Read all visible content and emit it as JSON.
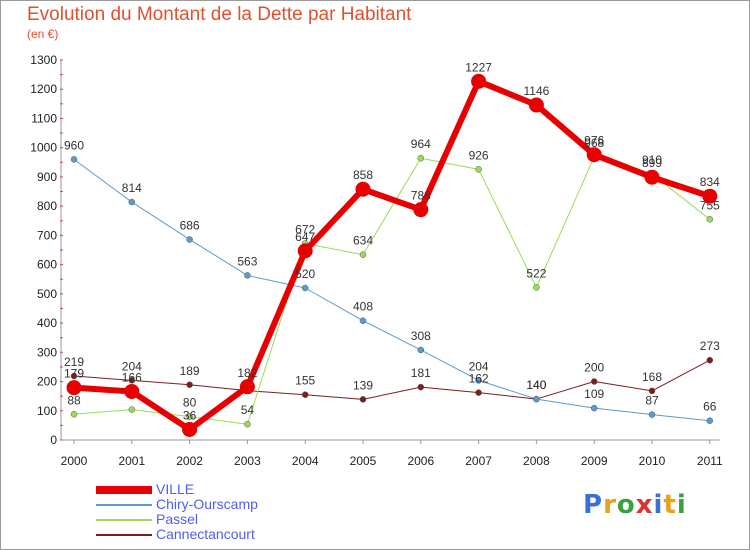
{
  "header": {
    "title": "Evolution du Montant de la Dette par Habitant",
    "unit": "(en €)"
  },
  "chart_data": {
    "type": "line",
    "title": "Evolution du Montant de la Dette par Habitant",
    "subtitle": "(en €)",
    "xlabel": "",
    "ylabel": "",
    "x": [
      2000,
      2001,
      2002,
      2003,
      2004,
      2005,
      2006,
      2007,
      2008,
      2009,
      2010,
      2011
    ],
    "x_tick_labels": [
      "2000",
      "2001",
      "2002",
      "2003",
      "2004",
      "2005",
      "2006",
      "2007",
      "2008",
      "2009",
      "2010",
      "2011"
    ],
    "y_tick_labels": [
      "0",
      "100",
      "200",
      "300",
      "400",
      "500",
      "600",
      "700",
      "800",
      "900",
      "1000",
      "1100",
      "1200",
      "1300"
    ],
    "ylim": [
      0,
      1300
    ],
    "grid": false,
    "legend_position": "bottom-left",
    "series": [
      {
        "name": "VILLE",
        "color": "#e80000",
        "values": [
          179,
          166,
          36,
          182,
          647,
          858,
          788,
          1227,
          1146,
          976,
          899,
          834
        ],
        "labels": [
          "179",
          "166",
          "36",
          "182",
          "647",
          "858",
          "788",
          "1227",
          "1146",
          "976",
          "899",
          "834"
        ]
      },
      {
        "name": "Chiry-Ourscamp",
        "color": "#5a9bd4",
        "values": [
          960,
          814,
          686,
          563,
          520,
          408,
          308,
          204,
          140,
          109,
          87,
          66
        ],
        "labels": [
          "960",
          "814",
          "686",
          "563",
          "520",
          "408",
          "308",
          "204",
          "140",
          "109",
          "87",
          "66"
        ]
      },
      {
        "name": "Passel",
        "color": "#99dd55",
        "values": [
          88,
          104,
          80,
          54,
          672,
          634,
          964,
          926,
          522,
          968,
          910,
          755
        ],
        "labels": [
          "88",
          "",
          "80",
          "54",
          "672",
          "634",
          "964",
          "926",
          "522",
          "968",
          "910",
          "755"
        ]
      },
      {
        "name": "Cannectancourt",
        "color": "#7a1f1f",
        "values": [
          219,
          204,
          189,
          169,
          155,
          139,
          181,
          162,
          140,
          200,
          168,
          273
        ],
        "labels": [
          "219",
          "204",
          "189",
          "",
          "155",
          "139",
          "181",
          "162",
          "140",
          "200",
          "168",
          "273"
        ]
      }
    ]
  },
  "logo": {
    "text": "Proxiti",
    "letters": [
      "P",
      "r",
      "o",
      "x",
      "i",
      "t",
      "i"
    ]
  }
}
